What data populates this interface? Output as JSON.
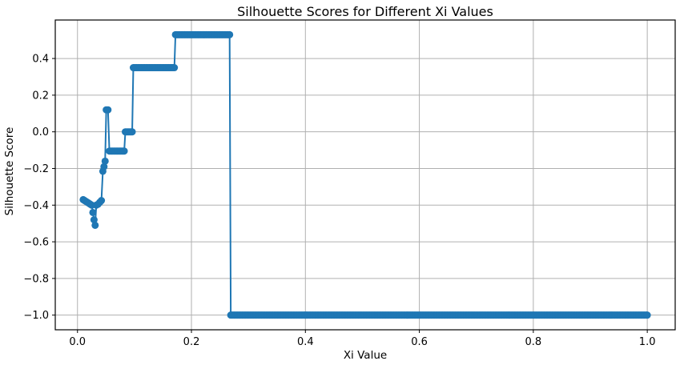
{
  "figure": {
    "title": "Silhouette Scores for Different Xi Values",
    "xlabel": "Xi Value",
    "ylabel": "Silhouette Score"
  },
  "chart_data": {
    "type": "line",
    "title": "Silhouette Scores for Different Xi Values",
    "xlabel": "Xi Value",
    "ylabel": "Silhouette Score",
    "line_color": "#1f77b4",
    "grid_color": "#b0b0b0",
    "spine_color": "#000000",
    "marker": "o",
    "grid": true,
    "legend": "none",
    "xlim": [
      -0.039,
      1.049
    ],
    "ylim": [
      -1.08,
      0.61
    ],
    "x_ticks": [
      0.0,
      0.2,
      0.4,
      0.6,
      0.8,
      1.0
    ],
    "x_tick_labels": [
      "0.0",
      "0.2",
      "0.4",
      "0.6",
      "0.8",
      "1.0"
    ],
    "y_ticks": [
      0.4,
      0.2,
      0.0,
      -0.2,
      -0.4,
      -0.6,
      -0.8,
      -1.0
    ],
    "y_tick_labels": [
      "0.4",
      "0.2",
      "0.0",
      "−0.2",
      "−0.4",
      "−0.6",
      "−0.8",
      "−1.0"
    ],
    "points": [
      [
        0.01,
        -0.37
      ],
      [
        0.0125,
        -0.375
      ],
      [
        0.015,
        -0.38
      ],
      [
        0.0175,
        -0.385
      ],
      [
        0.02,
        -0.39
      ],
      [
        0.0225,
        -0.395
      ],
      [
        0.025,
        -0.4
      ],
      [
        0.027,
        -0.44
      ],
      [
        0.029,
        -0.48
      ],
      [
        0.031,
        -0.51
      ],
      [
        0.033,
        -0.4
      ],
      [
        0.036,
        -0.395
      ],
      [
        0.039,
        -0.385
      ],
      [
        0.042,
        -0.375
      ],
      [
        0.0445,
        -0.215
      ],
      [
        0.0465,
        -0.19
      ],
      [
        0.0485,
        -0.16
      ],
      [
        0.0505,
        0.12
      ],
      [
        0.0535,
        0.12
      ]
    ],
    "plateaus": [
      {
        "x_start": 0.056,
        "x_end": 0.082,
        "y": -0.105,
        "step": 0.002
      },
      {
        "x_start": 0.084,
        "x_end": 0.096,
        "y": 0.0,
        "step": 0.002
      },
      {
        "x_start": 0.098,
        "x_end": 0.17,
        "y": 0.35,
        "step": 0.002
      },
      {
        "x_start": 0.172,
        "x_end": 0.267,
        "y": 0.53,
        "step": 0.002
      },
      {
        "x_start": 0.269,
        "x_end": 1.0,
        "y": -1.0,
        "step": 0.002
      }
    ]
  }
}
